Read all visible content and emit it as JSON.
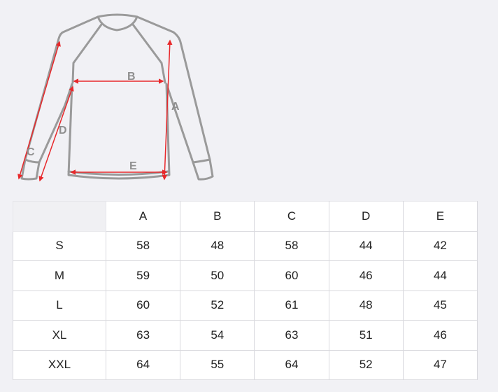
{
  "diagram": {
    "labels": {
      "A": "A",
      "B": "B",
      "C": "C",
      "D": "D",
      "E": "E"
    },
    "colors": {
      "outline": "#9a9a9a",
      "arrow": "#e8282b",
      "label": "#8f8f8f"
    }
  },
  "table": {
    "corner": "",
    "headers": [
      "A",
      "B",
      "C",
      "D",
      "E"
    ],
    "rows": [
      {
        "size": "S",
        "values": [
          "58",
          "48",
          "58",
          "44",
          "42"
        ]
      },
      {
        "size": "M",
        "values": [
          "59",
          "50",
          "60",
          "46",
          "44"
        ]
      },
      {
        "size": "L",
        "values": [
          "60",
          "52",
          "61",
          "48",
          "45"
        ]
      },
      {
        "size": "XL",
        "values": [
          "63",
          "54",
          "63",
          "51",
          "46"
        ]
      },
      {
        "size": "XXL",
        "values": [
          "64",
          "55",
          "64",
          "52",
          "47"
        ]
      }
    ]
  }
}
